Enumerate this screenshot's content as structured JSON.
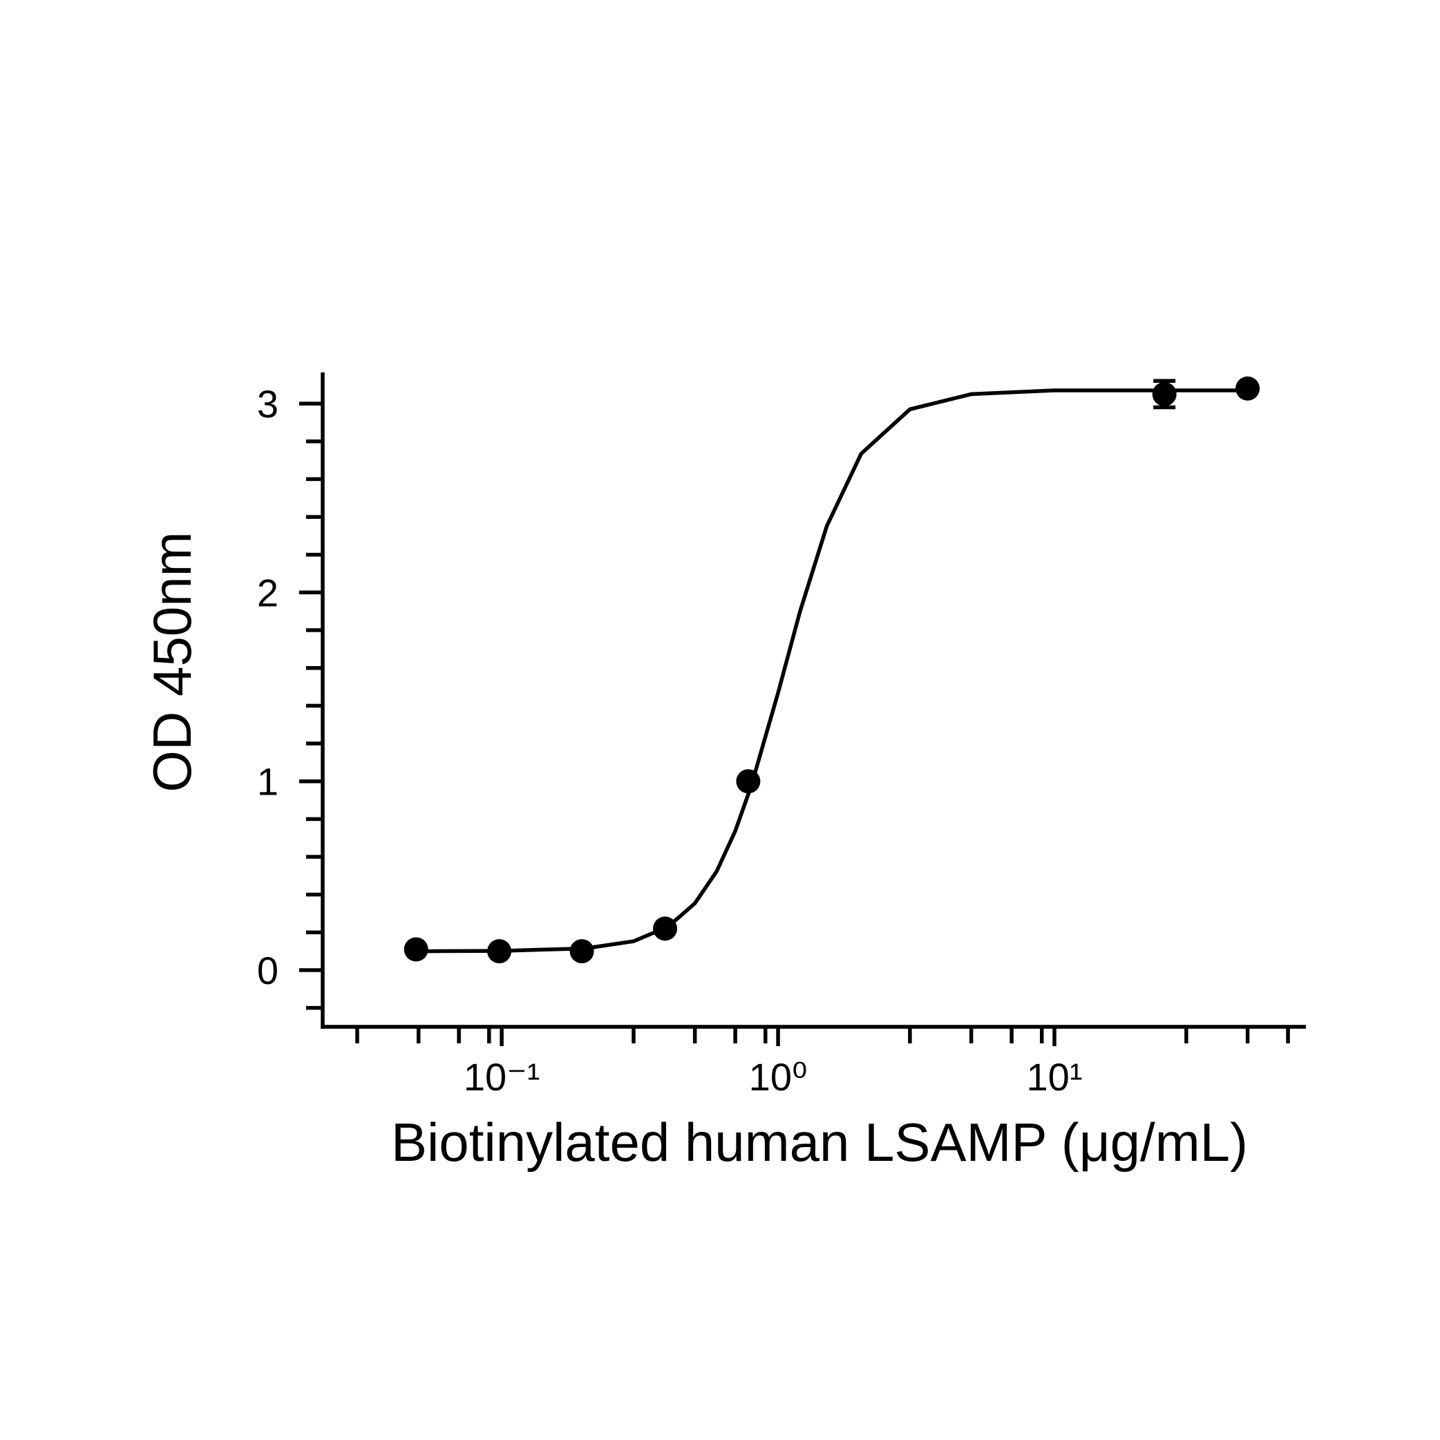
{
  "chart_data": {
    "type": "scatter",
    "x_label": "Biotinylated human LSAMP (μg/mL)",
    "y_label": "OD 450nm",
    "xscale": "log",
    "xlim": [
      0.0225,
      81.3
    ],
    "ylim": [
      -0.3,
      3.165
    ],
    "xticks": [
      {
        "value": 0.1,
        "label": "10⁻¹"
      },
      {
        "value": 1,
        "label": "10⁰"
      },
      {
        "value": 10,
        "label": "10¹"
      }
    ],
    "xminorticks": [
      0.03,
      0.05,
      0.07,
      0.09,
      0.3,
      0.5,
      0.7,
      0.9,
      3,
      5,
      7,
      9,
      30,
      50,
      70
    ],
    "yticks": [
      0,
      1,
      2,
      3
    ],
    "yminorticks": [
      -0.2,
      0.2,
      0.4,
      0.6,
      0.8,
      1.2,
      1.4,
      1.6,
      1.8,
      2.2,
      2.4,
      2.6,
      2.8
    ],
    "color": "#000000",
    "series": [
      {
        "x": [
          0.049,
          0.098,
          0.195,
          0.39,
          0.78,
          25,
          50
        ],
        "values": [
          0.11,
          0.1,
          0.1,
          0.22,
          1.0,
          3.05,
          3.08
        ],
        "errors": [
          null,
          null,
          null,
          null,
          null,
          0.07,
          null
        ]
      }
    ],
    "fit": {
      "x": [
        0.049,
        0.1,
        0.2,
        0.3,
        0.4,
        0.5,
        0.6,
        0.7,
        0.8,
        1.0,
        1.2,
        1.5,
        2,
        3,
        5,
        10,
        20,
        50
      ],
      "y": [
        0.1,
        0.102,
        0.115,
        0.153,
        0.23,
        0.354,
        0.524,
        0.737,
        0.977,
        1.469,
        1.898,
        2.351,
        2.735,
        2.97,
        3.05,
        3.07,
        3.07,
        3.07
      ]
    }
  }
}
